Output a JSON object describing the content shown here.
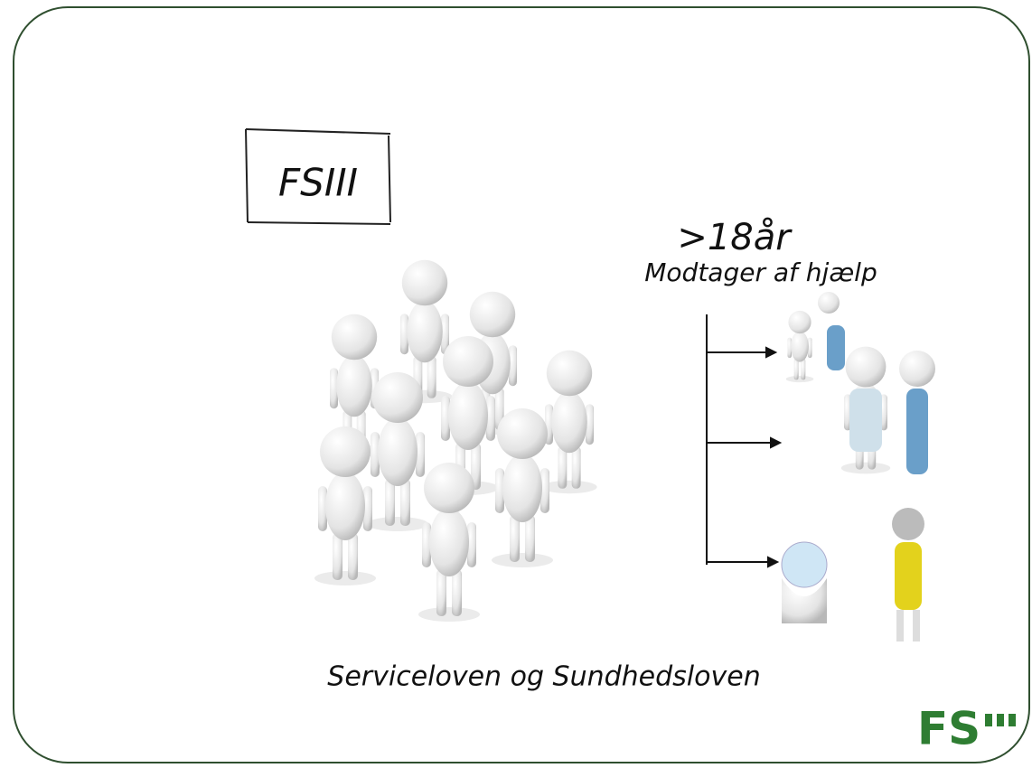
{
  "slide": {
    "box_label": "FSIII",
    "age": ">18år",
    "subtitle": "Modtager af hjælp",
    "caption": "Serviceloven og Sundhedsloven",
    "logo": "FS"
  }
}
